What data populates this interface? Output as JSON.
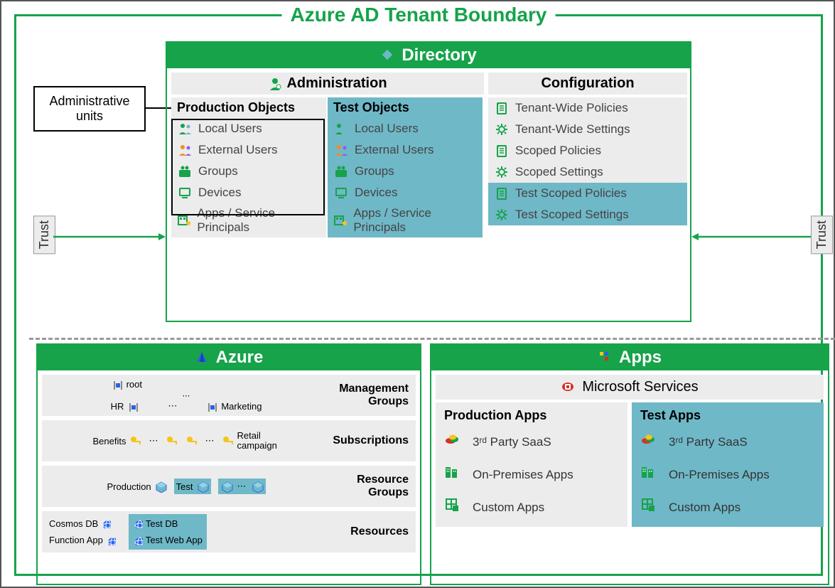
{
  "colors": {
    "green": "#16a34a",
    "teal": "#6fb8c7",
    "grey": "#ececec",
    "orange": "#f28c28",
    "yellow": "#f5c518",
    "blue": "#2563eb",
    "red": "#d93025",
    "text": "#333333"
  },
  "boundary": {
    "title": "Azure AD Tenant Boundary"
  },
  "adminUnits": "Administrative units",
  "trust": "Trust",
  "directory": {
    "title": "Directory",
    "administration": {
      "title": "Administration",
      "prodHeader": "Production Objects",
      "testHeader": "Test Objects",
      "items": [
        {
          "label": "Local Users",
          "icon": "users-green"
        },
        {
          "label": "External Users",
          "icon": "users-orange"
        },
        {
          "label": "Groups",
          "icon": "group"
        },
        {
          "label": "Devices",
          "icon": "device"
        },
        {
          "label": "Apps / Service Principals",
          "icon": "apps"
        }
      ]
    },
    "configuration": {
      "title": "Configuration",
      "items": [
        {
          "label": "Tenant-Wide Policies",
          "icon": "policy",
          "highlight": false
        },
        {
          "label": "Tenant-Wide Settings",
          "icon": "gear",
          "highlight": false
        },
        {
          "label": "Scoped Policies",
          "icon": "policy",
          "highlight": false
        },
        {
          "label": "Scoped Settings",
          "icon": "gear",
          "highlight": false
        },
        {
          "label": "Test Scoped Policies",
          "icon": "policy",
          "highlight": true
        },
        {
          "label": "Test Scoped Settings",
          "icon": "gear",
          "highlight": true
        }
      ]
    }
  },
  "azure": {
    "title": "Azure",
    "rows": [
      {
        "label": "Management Groups",
        "nodes": [
          "root"
        ],
        "sub": [
          "HR",
          "Marketing"
        ]
      },
      {
        "label": "Subscriptions",
        "nodes": [
          "Benefits",
          "...",
          "",
          "Retail campaign"
        ]
      },
      {
        "label": "Resource Groups",
        "nodes": [
          "Production",
          "Test",
          "...",
          ""
        ]
      },
      {
        "label": "Resources",
        "nodes": [
          "Cosmos DB",
          "Function App",
          "Test DB",
          "Test Web App"
        ]
      }
    ]
  },
  "apps": {
    "title": "Apps",
    "ms": "Microsoft Services",
    "prodHeader": "Production Apps",
    "testHeader": "Test Apps",
    "items": [
      {
        "label": "3ʳᵈ Party SaaS",
        "icon": "cloud"
      },
      {
        "label": "On-Premises Apps",
        "icon": "buildings"
      },
      {
        "label": "Custom Apps",
        "icon": "grid"
      }
    ]
  }
}
